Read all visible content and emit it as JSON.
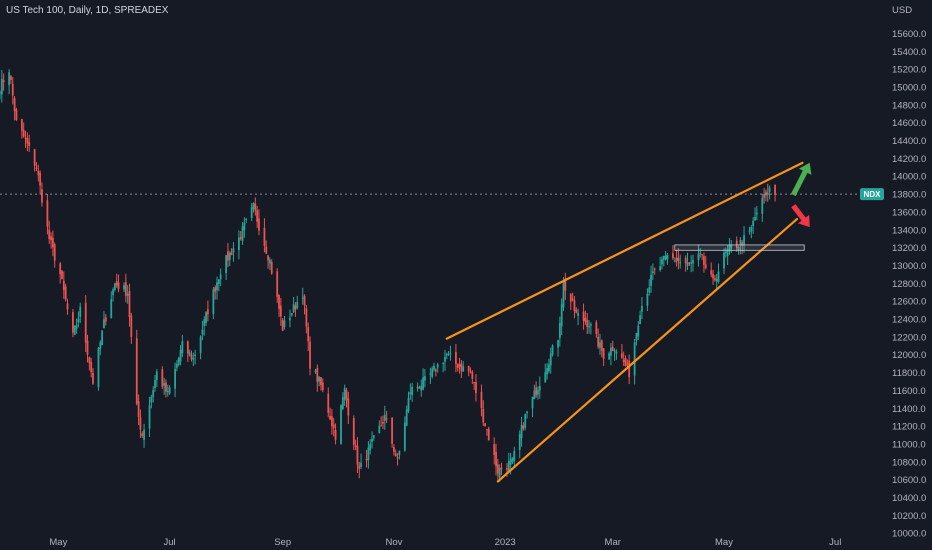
{
  "header": {
    "title": "US Tech 100, Daily, 1D, SPREADEX",
    "currency": "USD",
    "symbol_badge": "NDX"
  },
  "colors": {
    "background": "#161a25",
    "candle_up": "#26a69a",
    "candle_down": "#ef5350",
    "trendline": "#f7931a",
    "price_line": "#8a8d96",
    "badge_bg": "#26a69a",
    "arrow_up": "#4caf50",
    "arrow_down": "#f23645",
    "zone_border": "#c8cbd2"
  },
  "chart_data": {
    "type": "candlestick",
    "title": "US Tech 100, Daily, 1D, SPREADEX",
    "y_axis": {
      "unit": "USD",
      "ticks": [
        10000,
        10200,
        10400,
        10600,
        10800,
        11000,
        11200,
        11400,
        11600,
        11800,
        12000,
        12200,
        12400,
        12600,
        12800,
        13000,
        13200,
        13400,
        13600,
        13800,
        14000,
        14200,
        14400,
        14600,
        14800,
        15000,
        15200,
        15400,
        15600
      ],
      "tick_labels": [
        "10000.0",
        "10200.0",
        "10400.0",
        "10600.0",
        "10800.0",
        "11000.0",
        "11200.0",
        "11400.0",
        "11600.0",
        "11800.0",
        "12000.0",
        "12200.0",
        "12400.0",
        "12600.0",
        "12800.0",
        "13000.0",
        "13200.0",
        "13400.0",
        "13600.0",
        "13800.0",
        "14000.0",
        "14200.0",
        "14400.0",
        "14600.0",
        "14800.0",
        "15000.0",
        "15200.0",
        "15400.0",
        "15600.0"
      ],
      "range": [
        9980,
        15840
      ]
    },
    "x_axis": {
      "range": [
        "2022-03-30",
        "2023-07-08"
      ],
      "ticks": [
        {
          "label": "May",
          "date": "2022-05-01"
        },
        {
          "label": "Jul",
          "date": "2022-07-01"
        },
        {
          "label": "Sep",
          "date": "2022-09-01"
        },
        {
          "label": "Nov",
          "date": "2022-11-01"
        },
        {
          "label": "2023",
          "date": "2023-01-01"
        },
        {
          "label": "Mar",
          "date": "2023-03-01"
        },
        {
          "label": "May",
          "date": "2023-05-01"
        },
        {
          "label": "Jul",
          "date": "2023-07-01"
        }
      ]
    },
    "price_path": [
      [
        "2022-03-30",
        15000
      ],
      [
        "2022-04-04",
        15200
      ],
      [
        "2022-04-08",
        14600
      ],
      [
        "2022-04-13",
        14400
      ],
      [
        "2022-04-19",
        14100
      ],
      [
        "2022-04-26",
        13300
      ],
      [
        "2022-05-02",
        12900
      ],
      [
        "2022-05-09",
        12200
      ],
      [
        "2022-05-13",
        12500
      ],
      [
        "2022-05-20",
        11700
      ],
      [
        "2022-05-26",
        12350
      ],
      [
        "2022-06-01",
        12800
      ],
      [
        "2022-06-08",
        12700
      ],
      [
        "2022-06-13",
        11400
      ],
      [
        "2022-06-16",
        11100
      ],
      [
        "2022-06-24",
        11800
      ],
      [
        "2022-06-30",
        11550
      ],
      [
        "2022-07-08",
        12100
      ],
      [
        "2022-07-14",
        11950
      ],
      [
        "2022-07-22",
        12500
      ],
      [
        "2022-07-29",
        12950
      ],
      [
        "2022-08-08",
        13300
      ],
      [
        "2022-08-16",
        13650
      ],
      [
        "2022-08-25",
        13050
      ],
      [
        "2022-09-01",
        12300
      ],
      [
        "2022-09-12",
        12700
      ],
      [
        "2022-09-16",
        11900
      ],
      [
        "2022-09-22",
        11650
      ],
      [
        "2022-09-30",
        11100
      ],
      [
        "2022-10-05",
        11600
      ],
      [
        "2022-10-13",
        10700
      ],
      [
        "2022-10-20",
        11000
      ],
      [
        "2022-10-27",
        11300
      ],
      [
        "2022-11-03",
        10800
      ],
      [
        "2022-11-10",
        11600
      ],
      [
        "2022-11-18",
        11700
      ],
      [
        "2022-11-30",
        12000
      ],
      [
        "2022-12-05",
        11900
      ],
      [
        "2022-12-13",
        11800
      ],
      [
        "2022-12-20",
        11300
      ],
      [
        "2022-12-28",
        10700
      ],
      [
        "2023-01-05",
        10800
      ],
      [
        "2023-01-12",
        11300
      ],
      [
        "2023-01-20",
        11700
      ],
      [
        "2023-01-30",
        12200
      ],
      [
        "2023-02-02",
        12800
      ],
      [
        "2023-02-09",
        12450
      ],
      [
        "2023-02-16",
        12350
      ],
      [
        "2023-02-24",
        12000
      ],
      [
        "2023-03-02",
        12100
      ],
      [
        "2023-03-10",
        11800
      ],
      [
        "2023-03-16",
        12500
      ],
      [
        "2023-03-23",
        12900
      ],
      [
        "2023-03-31",
        13100
      ],
      [
        "2023-04-06",
        13050
      ],
      [
        "2023-04-12",
        13000
      ],
      [
        "2023-04-18",
        13100
      ],
      [
        "2023-04-25",
        12800
      ],
      [
        "2023-05-01",
        13100
      ],
      [
        "2023-05-05",
        13200
      ],
      [
        "2023-05-10",
        13250
      ],
      [
        "2023-05-15",
        13350
      ],
      [
        "2023-05-19",
        13600
      ],
      [
        "2023-05-23",
        13750
      ],
      [
        "2023-05-26",
        13850
      ],
      [
        "2023-05-29",
        13800
      ]
    ],
    "last_price": 13800,
    "annotations": {
      "upper_trendline": {
        "from": [
          "2022-11-30",
          12180
        ],
        "to": [
          "2023-06-13",
          14150
        ]
      },
      "lower_trendline": {
        "from": [
          "2022-12-28",
          10580
        ],
        "to": [
          "2023-06-10",
          13520
        ]
      },
      "resistance_zone": {
        "date_from": "2023-04-04",
        "date_to": "2023-06-14",
        "price_from": 13170,
        "price_to": 13230
      },
      "arrow_up": {
        "from": [
          "2023-06-08",
          13790
        ],
        "to": [
          "2023-06-17",
          14150
        ]
      },
      "arrow_down": {
        "from": [
          "2023-06-08",
          13670
        ],
        "to": [
          "2023-06-17",
          13430
        ]
      }
    },
    "grid": false,
    "legend": "none"
  }
}
